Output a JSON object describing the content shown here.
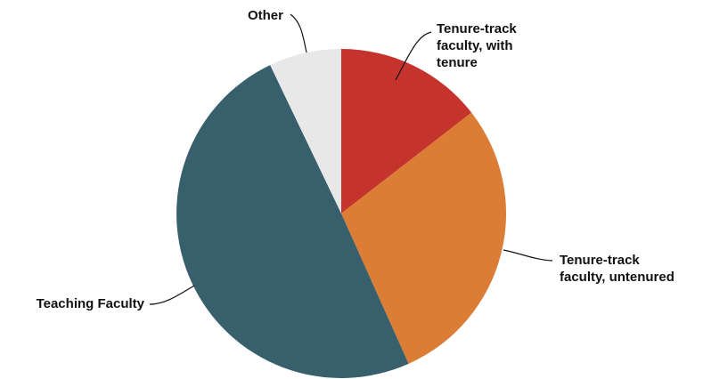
{
  "chart_data": {
    "type": "pie",
    "title": "",
    "legend": "none",
    "series": [
      {
        "values": [
          {
            "label": "Tenure-track faculty, with tenure",
            "value": 14.5,
            "color": "#c5342c"
          },
          {
            "label": "Tenure-track faculty, untenured",
            "value": 28.8,
            "color": "#dc7d35"
          },
          {
            "label": "Teaching Faculty",
            "value": 49.6,
            "color": "#375f6c"
          },
          {
            "label": "Other",
            "value": 7.1,
            "color": "#e8e8e8"
          }
        ]
      }
    ],
    "labels": [
      [
        "Tenure-track",
        "faculty, with",
        "tenure"
      ],
      [
        "Tenure-track",
        "faculty, untenured"
      ],
      [
        "Teaching Faculty"
      ],
      [
        "Other"
      ]
    ]
  }
}
